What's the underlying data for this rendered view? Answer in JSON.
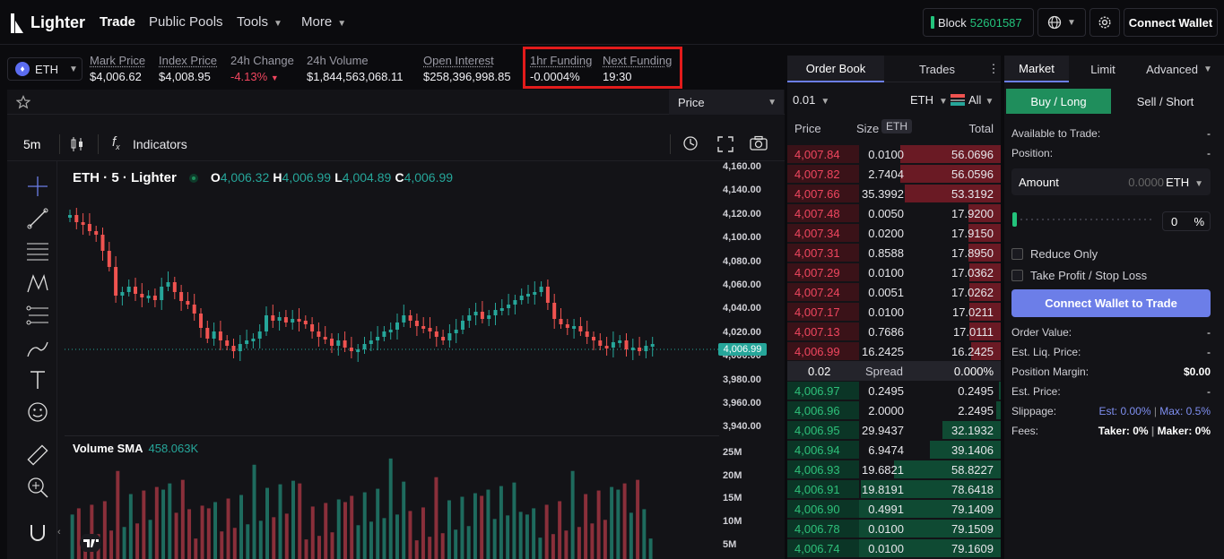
{
  "nav": {
    "logo": "Lighter",
    "items": [
      "Trade",
      "Public Pools",
      "Tools",
      "More"
    ],
    "block_label": "Block",
    "block_number": "52601587",
    "connect_wallet": "Connect Wallet"
  },
  "stats": {
    "symbol": "ETH",
    "mark_price_label": "Mark Price",
    "mark_price": "$4,006.62",
    "index_price_label": "Index Price",
    "index_price": "$4,008.95",
    "change_label": "24h Change",
    "change": "-4.13%",
    "volume_label": "24h Volume",
    "volume": "$1,844,563,068.11",
    "oi_label": "Open Interest",
    "oi": "$258,396,998.85",
    "funding_label": "1hr Funding",
    "funding": "-0.0004%",
    "next_funding_label": "Next Funding",
    "next_funding": "19:30"
  },
  "chart": {
    "price_select": "Price",
    "interval": "5m",
    "indicators": "Indicators",
    "title": "ETH · 5 · Lighter",
    "o_label": "O",
    "o": "4,006.32",
    "h_label": "H",
    "h": "4,006.99",
    "l_label": "L",
    "l": "4,004.89",
    "c_label": "C",
    "c": "4,006.99",
    "current_price": "4,006.99",
    "price_ticks": [
      "4,160.00",
      "4,140.00",
      "4,120.00",
      "4,100.00",
      "4,080.00",
      "4,060.00",
      "4,040.00",
      "4,020.00",
      "4,000.00",
      "3,980.00",
      "3,960.00",
      "3,940.00"
    ],
    "volume_title": "Volume SMA",
    "volume_value": "458.063K",
    "volume_ticks": [
      "25M",
      "20M",
      "15M",
      "10M",
      "5M"
    ]
  },
  "orderbook": {
    "tabs": [
      "Order Book",
      "Trades"
    ],
    "tick": "0.01",
    "unit": "ETH",
    "filter": "All",
    "headers": {
      "price": "Price",
      "size": "Size",
      "size_unit": "ETH",
      "total": "Total"
    },
    "asks": [
      {
        "price": "4,007.84",
        "size": "0.0100",
        "total": "56.0696",
        "depth": 0.71
      },
      {
        "price": "4,007.82",
        "size": "2.7404",
        "total": "56.0596",
        "depth": 0.71
      },
      {
        "price": "4,007.66",
        "size": "35.3992",
        "total": "53.3192",
        "depth": 0.68
      },
      {
        "price": "4,007.48",
        "size": "0.0050",
        "total": "17.9200",
        "depth": 0.23
      },
      {
        "price": "4,007.34",
        "size": "0.0200",
        "total": "17.9150",
        "depth": 0.23
      },
      {
        "price": "4,007.31",
        "size": "0.8588",
        "total": "17.8950",
        "depth": 0.23
      },
      {
        "price": "4,007.29",
        "size": "0.0100",
        "total": "17.0362",
        "depth": 0.22
      },
      {
        "price": "4,007.24",
        "size": "0.0051",
        "total": "17.0262",
        "depth": 0.22
      },
      {
        "price": "4,007.17",
        "size": "0.0100",
        "total": "17.0211",
        "depth": 0.22
      },
      {
        "price": "4,007.13",
        "size": "0.7686",
        "total": "17.0111",
        "depth": 0.22
      },
      {
        "price": "4,006.99",
        "size": "16.2425",
        "total": "16.2425",
        "depth": 0.21
      }
    ],
    "spread_value": "0.02",
    "spread_label": "Spread",
    "spread_pct": "0.000%",
    "bids": [
      {
        "price": "4,006.97",
        "size": "0.2495",
        "total": "0.2495",
        "depth": 0.01
      },
      {
        "price": "4,006.96",
        "size": "2.0000",
        "total": "2.2495",
        "depth": 0.03
      },
      {
        "price": "4,006.95",
        "size": "29.9437",
        "total": "32.1932",
        "depth": 0.41
      },
      {
        "price": "4,006.94",
        "size": "6.9474",
        "total": "39.1406",
        "depth": 0.5
      },
      {
        "price": "4,006.93",
        "size": "19.6821",
        "total": "58.8227",
        "depth": 0.75
      },
      {
        "price": "4,006.91",
        "size": "19.8191",
        "total": "78.6418",
        "depth": 0.99
      },
      {
        "price": "4,006.90",
        "size": "0.4991",
        "total": "79.1409",
        "depth": 1.0
      },
      {
        "price": "4,006.78",
        "size": "0.0100",
        "total": "79.1509",
        "depth": 1.0
      },
      {
        "price": "4,006.74",
        "size": "0.0100",
        "total": "79.1609",
        "depth": 1.0
      }
    ]
  },
  "trade": {
    "tabs": [
      "Market",
      "Limit",
      "Advanced"
    ],
    "buy": "Buy / Long",
    "sell": "Sell / Short",
    "available_label": "Available to Trade:",
    "available": "-",
    "position_label": "Position:",
    "position": "-",
    "amount_label": "Amount",
    "amount_placeholder": "0.0000",
    "amount_unit": "ETH",
    "pct_value": "0",
    "pct_unit": "%",
    "reduce_only": "Reduce Only",
    "tp_sl": "Take Profit / Stop Loss",
    "connect": "Connect Wallet to Trade",
    "order_value_label": "Order Value:",
    "order_value": "-",
    "liq_label": "Est. Liq. Price:",
    "liq": "-",
    "margin_label": "Position Margin:",
    "margin": "$0.00",
    "est_price_label": "Est. Price:",
    "est_price": "-",
    "slippage_label": "Slippage:",
    "slippage_est": "Est: 0.00%",
    "slippage_max": "Max: 0.5%",
    "fees_label": "Fees:",
    "fees_taker": "Taker: 0%",
    "fees_maker": "Maker: 0%"
  },
  "colors": {
    "up": "#26a69a",
    "down": "#ef5350",
    "accent": "#6c7ee8",
    "buy": "#1f8e5c",
    "highlight": "#e21b1b"
  }
}
